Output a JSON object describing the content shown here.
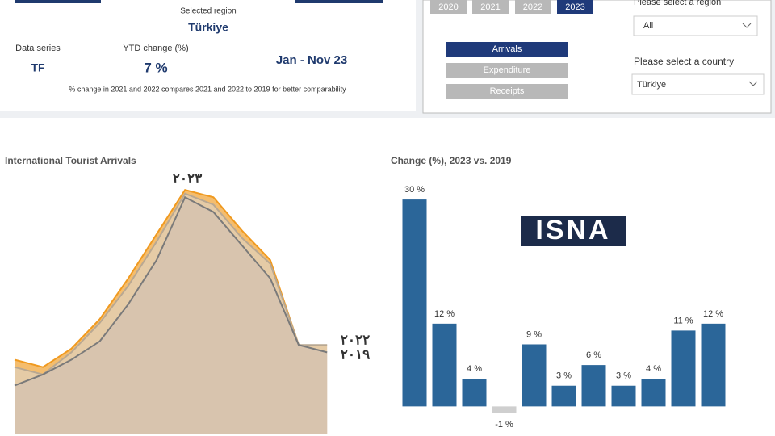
{
  "summary": {
    "selected_region_label": "Selected region",
    "selected_region": "Türkiye",
    "data_series_label": "Data series",
    "data_series": "TF",
    "ytd_label": "YTD change (%)",
    "ytd_value": "7 %",
    "period": "Jan - Nov 23",
    "note": "% change in 2021 and 2022 compares 2021 and 2022  to 2019 for better comparability"
  },
  "filters": {
    "years": [
      "2020",
      "2021",
      "2022",
      "2023"
    ],
    "selected_year_index": 3,
    "measures": [
      "Arrivals",
      "Expenditure",
      "Receipts"
    ],
    "selected_measure_index": 0,
    "region_label": "Please select a region",
    "region": "All",
    "country_label": "Please select a country",
    "country": "Türkiye"
  },
  "watermark": "ISNA",
  "chart_data": [
    {
      "type": "area",
      "title": "International Tourist Arrivals",
      "categories": [
        null,
        null,
        null,
        null,
        null,
        null,
        null,
        null,
        null,
        null,
        null,
        null
      ],
      "ylim": [
        0,
        6.8
      ],
      "series": [
        {
          "name": "۲۰۲۳",
          "color": "#f09a20",
          "fill": "#f4bd6e",
          "values": [
            2.0,
            1.8,
            2.3,
            3.1,
            4.2,
            5.4,
            6.6,
            6.4,
            5.5,
            4.7,
            2.4,
            null
          ]
        },
        {
          "name": "۲۰۲۲",
          "color": "#b9a892",
          "fill": "#e5cba6",
          "values": [
            1.8,
            1.6,
            2.2,
            3.0,
            4.0,
            5.2,
            6.5,
            6.2,
            5.3,
            4.6,
            2.4,
            2.4
          ]
        },
        {
          "name": "۲۰۱۹",
          "color": "#7a7a7a",
          "fill": "#d8c4ae",
          "values": [
            1.3,
            1.6,
            2.0,
            2.5,
            3.5,
            4.7,
            6.4,
            6.0,
            5.1,
            4.2,
            2.4,
            2.2
          ]
        }
      ]
    },
    {
      "type": "bar",
      "title": "Change (%), 2023 vs. 2019",
      "categories": [
        null,
        null,
        null,
        null,
        null,
        null,
        null,
        null,
        null,
        null,
        null
      ],
      "values": [
        30,
        12,
        4,
        -1,
        9,
        3,
        6,
        3,
        4,
        11,
        12
      ],
      "value_labels": [
        "30 %",
        "12 %",
        "4 %",
        "-1 %",
        "9 %",
        "3 %",
        "6 %",
        "3 %",
        "4 %",
        "11 %",
        "12 %"
      ],
      "color": "#2b6699",
      "negative_color": "#cfcfcf",
      "ylim": [
        -3,
        32
      ]
    }
  ]
}
